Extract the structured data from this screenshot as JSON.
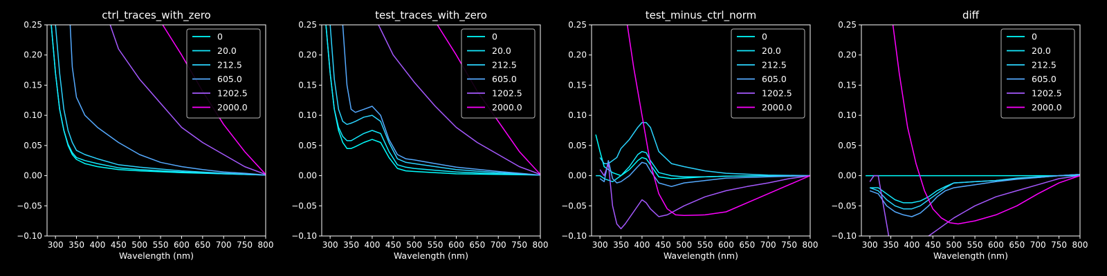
{
  "chart_data": [
    {
      "type": "line",
      "title": "ctrl_traces_with_zero",
      "xlabel": "Wavelength (nm)",
      "ylabel": "",
      "xlim": [
        280,
        800
      ],
      "ylim": [
        -0.1,
        0.25
      ],
      "xticks": [
        "300",
        "350",
        "400",
        "450",
        "500",
        "550",
        "600",
        "650",
        "700",
        "750",
        "800"
      ],
      "yticks": [
        "−0.10",
        "−0.05",
        "0.00",
        "0.05",
        "0.10",
        "0.15",
        "0.20",
        "0.25"
      ],
      "legend_position": "top-right",
      "series": [
        {
          "name": "0",
          "color": "#00ffff",
          "x": [
            290,
            300,
            310,
            320,
            330,
            340,
            350,
            370,
            400,
            450,
            500,
            600,
            700,
            800
          ],
          "y": [
            0.25,
            0.17,
            0.11,
            0.075,
            0.05,
            0.035,
            0.027,
            0.02,
            0.015,
            0.01,
            0.008,
            0.005,
            0.003,
            0.001
          ]
        },
        {
          "name": "20.0",
          "color": "#14ebff",
          "x": [
            290,
            300,
            310,
            320,
            330,
            340,
            350,
            370,
            400,
            450,
            500,
            600,
            700,
            800
          ],
          "y": [
            0.25,
            0.17,
            0.11,
            0.075,
            0.052,
            0.038,
            0.03,
            0.025,
            0.02,
            0.013,
            0.01,
            0.006,
            0.003,
            0.001
          ]
        },
        {
          "name": "212.5",
          "color": "#2bd4ff",
          "x": [
            300,
            310,
            320,
            330,
            340,
            350,
            370,
            400,
            450,
            500,
            600,
            700,
            800
          ],
          "y": [
            0.25,
            0.17,
            0.11,
            0.075,
            0.055,
            0.042,
            0.035,
            0.028,
            0.018,
            0.014,
            0.008,
            0.004,
            0.001
          ]
        },
        {
          "name": "605.0",
          "color": "#55aaff",
          "x": [
            335,
            340,
            350,
            360,
            370,
            400,
            450,
            500,
            550,
            600,
            650,
            700,
            750,
            800
          ],
          "y": [
            0.25,
            0.18,
            0.13,
            0.115,
            0.1,
            0.08,
            0.055,
            0.035,
            0.022,
            0.015,
            0.01,
            0.006,
            0.004,
            0.001
          ]
        },
        {
          "name": "1202.5",
          "color": "#a659ff",
          "x": [
            430,
            450,
            500,
            550,
            600,
            650,
            700,
            750,
            800
          ],
          "y": [
            0.25,
            0.21,
            0.16,
            0.12,
            0.08,
            0.055,
            0.035,
            0.015,
            0.002
          ]
        },
        {
          "name": "2000.0",
          "color": "#ff00ff",
          "x": [
            555,
            600,
            650,
            700,
            750,
            800
          ],
          "y": [
            0.25,
            0.2,
            0.14,
            0.085,
            0.04,
            0.002
          ]
        }
      ]
    },
    {
      "type": "line",
      "title": "test_traces_with_zero",
      "xlabel": "Wavelength (nm)",
      "ylabel": "",
      "xlim": [
        280,
        800
      ],
      "ylim": [
        -0.1,
        0.25
      ],
      "xticks": [
        "300",
        "350",
        "400",
        "450",
        "500",
        "550",
        "600",
        "650",
        "700",
        "750",
        "800"
      ],
      "yticks": [
        "−0.10",
        "−0.05",
        "0.00",
        "0.05",
        "0.10",
        "0.15",
        "0.20",
        "0.25"
      ],
      "legend_position": "top-right",
      "series": [
        {
          "name": "0",
          "color": "#00ffff",
          "x": [
            290,
            300,
            310,
            320,
            330,
            340,
            350,
            360,
            380,
            400,
            420,
            440,
            460,
            480,
            500,
            550,
            600,
            700,
            800
          ],
          "y": [
            0.25,
            0.17,
            0.11,
            0.075,
            0.055,
            0.045,
            0.045,
            0.048,
            0.055,
            0.06,
            0.055,
            0.03,
            0.012,
            0.008,
            0.007,
            0.005,
            0.003,
            0.002,
            0.001
          ]
        },
        {
          "name": "20.0",
          "color": "#14ebff",
          "x": [
            290,
            300,
            310,
            320,
            330,
            340,
            350,
            360,
            380,
            400,
            420,
            440,
            460,
            480,
            500,
            550,
            600,
            700,
            800
          ],
          "y": [
            0.25,
            0.17,
            0.11,
            0.08,
            0.065,
            0.058,
            0.058,
            0.062,
            0.07,
            0.075,
            0.07,
            0.04,
            0.018,
            0.014,
            0.012,
            0.009,
            0.006,
            0.003,
            0.001
          ]
        },
        {
          "name": "212.5",
          "color": "#2bd4ff",
          "x": [
            300,
            310,
            320,
            330,
            340,
            350,
            360,
            380,
            400,
            420,
            440,
            460,
            480,
            500,
            550,
            600,
            700,
            800
          ],
          "y": [
            0.25,
            0.16,
            0.11,
            0.09,
            0.085,
            0.087,
            0.09,
            0.097,
            0.1,
            0.09,
            0.055,
            0.028,
            0.022,
            0.02,
            0.015,
            0.01,
            0.005,
            0.001
          ]
        },
        {
          "name": "605.0",
          "color": "#55aaff",
          "x": [
            330,
            340,
            350,
            360,
            380,
            400,
            420,
            440,
            460,
            480,
            500,
            550,
            600,
            700,
            800
          ],
          "y": [
            0.25,
            0.15,
            0.11,
            0.105,
            0.11,
            0.115,
            0.1,
            0.06,
            0.035,
            0.028,
            0.026,
            0.02,
            0.014,
            0.007,
            0.001
          ]
        },
        {
          "name": "1202.5",
          "color": "#a659ff",
          "x": [
            415,
            450,
            500,
            550,
            600,
            650,
            700,
            750,
            800
          ],
          "y": [
            0.25,
            0.2,
            0.155,
            0.115,
            0.08,
            0.055,
            0.035,
            0.015,
            0.002
          ]
        },
        {
          "name": "2000.0",
          "color": "#ff00ff",
          "x": [
            555,
            600,
            650,
            700,
            750,
            800
          ],
          "y": [
            0.25,
            0.2,
            0.14,
            0.09,
            0.04,
            0.002
          ]
        }
      ]
    },
    {
      "type": "line",
      "title": "test_minus_ctrl_norm",
      "xlabel": "Wavelength (nm)",
      "ylabel": "",
      "xlim": [
        280,
        800
      ],
      "ylim": [
        -0.1,
        0.25
      ],
      "xticks": [
        "300",
        "350",
        "400",
        "450",
        "500",
        "550",
        "600",
        "650",
        "700",
        "750",
        "800"
      ],
      "yticks": [
        "−0.10",
        "−0.05",
        "0.00",
        "0.05",
        "0.10",
        "0.15",
        "0.20",
        "0.25"
      ],
      "legend_position": "top-right",
      "series": [
        {
          "name": "0",
          "color": "#00ffff",
          "x": [
            290,
            300,
            310,
            330,
            350,
            370,
            390,
            400,
            410,
            420,
            440,
            470,
            500,
            550,
            600,
            700,
            800
          ],
          "y": [
            0.068,
            0.04,
            0.015,
            0.005,
            0.0,
            0.01,
            0.025,
            0.03,
            0.028,
            0.018,
            -0.002,
            -0.005,
            -0.004,
            -0.002,
            -0.001,
            0.0,
            0.0
          ]
        },
        {
          "name": "20.0",
          "color": "#14ebff",
          "x": [
            290,
            300,
            310,
            330,
            350,
            370,
            390,
            400,
            410,
            420,
            440,
            470,
            500,
            550,
            600,
            700,
            800
          ],
          "y": [
            0.0,
            0.0,
            -0.005,
            -0.01,
            0.0,
            0.015,
            0.035,
            0.04,
            0.038,
            0.025,
            0.005,
            0.0,
            -0.002,
            -0.002,
            -0.001,
            0.0,
            0.0
          ]
        },
        {
          "name": "212.5",
          "color": "#2bd4ff",
          "x": [
            300,
            310,
            320,
            340,
            350,
            370,
            390,
            400,
            410,
            420,
            440,
            470,
            500,
            550,
            600,
            700,
            800
          ],
          "y": [
            0.03,
            0.02,
            0.02,
            0.03,
            0.045,
            0.06,
            0.08,
            0.088,
            0.088,
            0.08,
            0.04,
            0.02,
            0.015,
            0.008,
            0.004,
            0.001,
            0.0
          ]
        },
        {
          "name": "605.0",
          "color": "#55aaff",
          "x": [
            300,
            310,
            320,
            330,
            340,
            350,
            370,
            390,
            400,
            410,
            420,
            440,
            470,
            500,
            550,
            600,
            700,
            800
          ],
          "y": [
            -0.005,
            -0.01,
            0.025,
            -0.005,
            -0.012,
            -0.01,
            0.0,
            0.015,
            0.022,
            0.02,
            0.008,
            -0.012,
            -0.018,
            -0.012,
            -0.008,
            -0.004,
            -0.002,
            0.0
          ]
        },
        {
          "name": "1202.5",
          "color": "#a659ff",
          "x": [
            300,
            310,
            320,
            330,
            340,
            350,
            360,
            380,
            400,
            410,
            420,
            440,
            460,
            500,
            550,
            600,
            650,
            700,
            750,
            800
          ],
          "y": [
            0.01,
            0.0,
            0.02,
            -0.05,
            -0.08,
            -0.088,
            -0.08,
            -0.06,
            -0.04,
            -0.045,
            -0.055,
            -0.068,
            -0.065,
            -0.05,
            -0.035,
            -0.025,
            -0.018,
            -0.012,
            -0.005,
            0.0
          ]
        },
        {
          "name": "2000.0",
          "color": "#ff00ff",
          "x": [
            365,
            380,
            400,
            420,
            440,
            460,
            480,
            500,
            550,
            600,
            650,
            700,
            750,
            800
          ],
          "y": [
            0.25,
            0.18,
            0.1,
            0.02,
            -0.03,
            -0.055,
            -0.065,
            -0.066,
            -0.065,
            -0.06,
            -0.045,
            -0.03,
            -0.015,
            0.0
          ]
        }
      ]
    },
    {
      "type": "line",
      "title": "diff",
      "xlabel": "Wavelength (nm)",
      "ylabel": "",
      "xlim": [
        280,
        800
      ],
      "ylim": [
        -0.1,
        0.25
      ],
      "xticks": [
        "300",
        "350",
        "400",
        "450",
        "500",
        "550",
        "600",
        "650",
        "700",
        "750",
        "800"
      ],
      "yticks": [
        "−0.10",
        "−0.05",
        "0.00",
        "0.05",
        "0.10",
        "0.15",
        "0.20",
        "0.25"
      ],
      "legend_position": "top-right",
      "series": [
        {
          "name": "0",
          "color": "#00ffff",
          "x": [
            290,
            800
          ],
          "y": [
            0.0,
            0.0
          ]
        },
        {
          "name": "20.0",
          "color": "#14ebff",
          "x": [
            300,
            320,
            340,
            360,
            380,
            400,
            420,
            440,
            460,
            480,
            500,
            550,
            600,
            650,
            700,
            750,
            800
          ],
          "y": [
            -0.02,
            -0.02,
            -0.03,
            -0.04,
            -0.045,
            -0.045,
            -0.042,
            -0.035,
            -0.025,
            -0.018,
            -0.012,
            -0.01,
            -0.008,
            -0.005,
            -0.003,
            0.0,
            0.002
          ]
        },
        {
          "name": "212.5",
          "color": "#2bd4ff",
          "x": [
            300,
            320,
            340,
            360,
            380,
            400,
            420,
            440,
            460,
            480,
            500,
            550,
            600,
            650,
            700,
            750,
            800
          ],
          "y": [
            -0.02,
            -0.025,
            -0.04,
            -0.05,
            -0.055,
            -0.055,
            -0.05,
            -0.04,
            -0.03,
            -0.02,
            -0.012,
            -0.01,
            -0.008,
            -0.004,
            -0.002,
            0.0,
            0.002
          ]
        },
        {
          "name": "605.0",
          "color": "#55aaff",
          "x": [
            300,
            320,
            340,
            360,
            380,
            400,
            420,
            440,
            460,
            480,
            500,
            550,
            600,
            650,
            700,
            750,
            800
          ],
          "y": [
            -0.025,
            -0.03,
            -0.05,
            -0.06,
            -0.065,
            -0.068,
            -0.062,
            -0.05,
            -0.035,
            -0.025,
            -0.02,
            -0.015,
            -0.01,
            -0.006,
            -0.003,
            0.0,
            0.002
          ]
        },
        {
          "name": "1202.5",
          "color": "#a659ff",
          "x": [
            300,
            310,
            320,
            330,
            340,
            345,
            350,
            440,
            460,
            500,
            550,
            600,
            650,
            700,
            750,
            800
          ],
          "y": [
            -0.01,
            0.0,
            0.0,
            -0.04,
            -0.08,
            -0.1,
            -0.12,
            -0.1,
            -0.09,
            -0.07,
            -0.05,
            -0.035,
            -0.025,
            -0.015,
            -0.005,
            0.0
          ]
        },
        {
          "name": "2000.0",
          "color": "#ff00ff",
          "x": [
            355,
            370,
            390,
            410,
            430,
            450,
            470,
            490,
            510,
            550,
            600,
            650,
            700,
            750,
            800
          ],
          "y": [
            0.25,
            0.17,
            0.08,
            0.02,
            -0.025,
            -0.055,
            -0.07,
            -0.078,
            -0.08,
            -0.075,
            -0.065,
            -0.05,
            -0.03,
            -0.012,
            0.0
          ]
        }
      ]
    }
  ]
}
